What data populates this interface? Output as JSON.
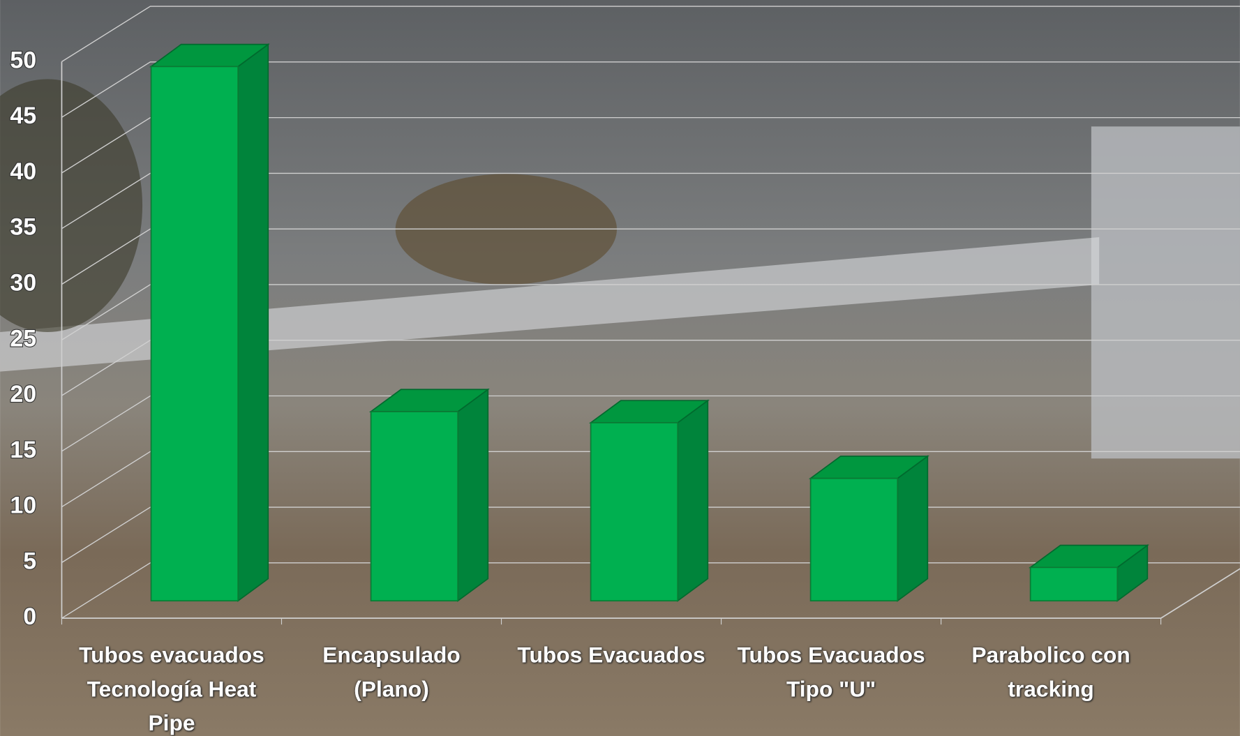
{
  "chart_data": {
    "type": "bar3d",
    "categories": [
      "Tubos evacuados Tecnología Heat Pipe",
      "Encapsulado (Plano)",
      "Tubos Evacuados",
      "Tubos Evacuados Tipo \"U\"",
      "Parabolico con tracking"
    ],
    "values": [
      48,
      17,
      16,
      11,
      3
    ],
    "color": "#00b050",
    "ylim": [
      0,
      50
    ],
    "yticks": [
      0,
      5,
      10,
      15,
      20,
      25,
      30,
      35,
      40,
      45,
      50
    ],
    "grid": true
  }
}
